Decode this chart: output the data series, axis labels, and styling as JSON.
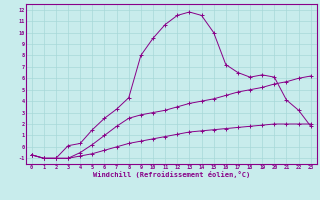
{
  "xlabel": "Windchill (Refroidissement éolien,°C)",
  "line_color": "#880088",
  "bg_color": "#c8ecec",
  "grid_color": "#a8d8d8",
  "xlim": [
    -0.5,
    23.5
  ],
  "ylim": [
    -1.5,
    12.5
  ],
  "xticks": [
    0,
    1,
    2,
    3,
    4,
    5,
    6,
    7,
    8,
    9,
    10,
    11,
    12,
    13,
    14,
    15,
    16,
    17,
    18,
    19,
    20,
    21,
    22,
    23
  ],
  "yticks": [
    -1,
    0,
    1,
    2,
    3,
    4,
    5,
    6,
    7,
    8,
    9,
    10,
    11,
    12
  ],
  "line1_x": [
    0,
    1,
    2,
    3,
    4,
    5,
    6,
    7,
    8,
    9,
    10,
    11,
    12,
    13,
    14,
    15,
    16,
    17,
    18,
    19,
    20,
    21,
    22,
    23
  ],
  "line1_y": [
    -0.7,
    -1.0,
    -1.0,
    0.1,
    0.3,
    1.5,
    2.5,
    3.3,
    4.3,
    8.0,
    9.5,
    10.7,
    11.5,
    11.8,
    11.5,
    10.0,
    7.2,
    6.5,
    6.1,
    6.3,
    6.1,
    4.1,
    3.2,
    1.8
  ],
  "line2_x": [
    0,
    1,
    2,
    3,
    4,
    5,
    6,
    7,
    8,
    9,
    10,
    11,
    12,
    13,
    14,
    15,
    16,
    17,
    18,
    19,
    20,
    21,
    22,
    23
  ],
  "line2_y": [
    -0.7,
    -1.0,
    -1.0,
    -1.0,
    -0.5,
    0.2,
    1.0,
    1.8,
    2.5,
    2.8,
    3.0,
    3.2,
    3.5,
    3.8,
    4.0,
    4.2,
    4.5,
    4.8,
    5.0,
    5.2,
    5.5,
    5.7,
    6.0,
    6.2
  ],
  "line3_x": [
    0,
    1,
    2,
    3,
    4,
    5,
    6,
    7,
    8,
    9,
    10,
    11,
    12,
    13,
    14,
    15,
    16,
    17,
    18,
    19,
    20,
    21,
    22,
    23
  ],
  "line3_y": [
    -0.7,
    -1.0,
    -1.0,
    -1.0,
    -0.8,
    -0.6,
    -0.3,
    0.0,
    0.3,
    0.5,
    0.7,
    0.9,
    1.1,
    1.3,
    1.4,
    1.5,
    1.6,
    1.7,
    1.8,
    1.9,
    2.0,
    2.0,
    2.0,
    2.0
  ]
}
